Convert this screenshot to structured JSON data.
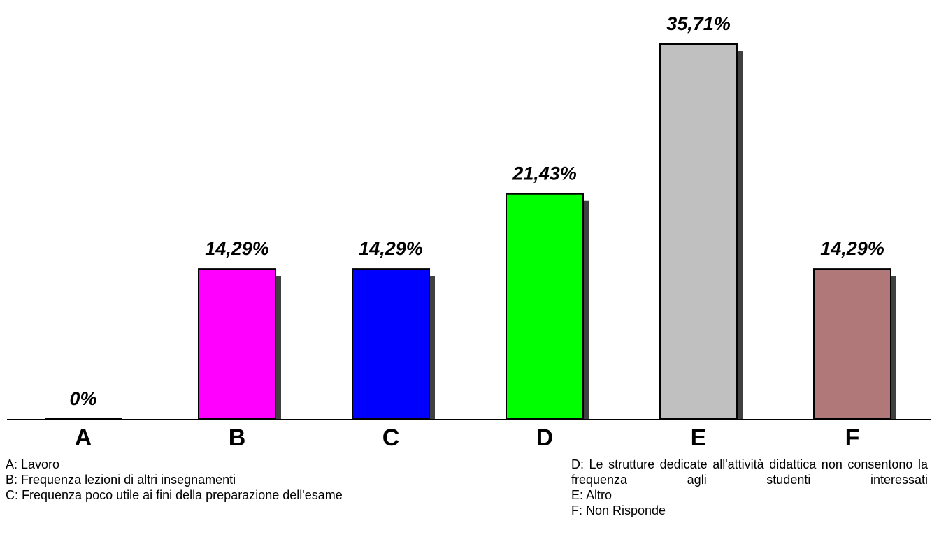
{
  "chart_data": {
    "type": "bar",
    "categories": [
      "A",
      "B",
      "C",
      "D",
      "E",
      "F"
    ],
    "values": [
      0,
      14.29,
      14.29,
      21.43,
      35.71,
      14.29
    ],
    "value_labels": [
      "0%",
      "14,29%",
      "14,29%",
      "21,43%",
      "35,71%",
      "14,29%"
    ],
    "colors": [
      "#000000",
      "#ff00ff",
      "#0000ff",
      "#00ff00",
      "#c0c0c0",
      "#b07878"
    ],
    "shadow_color": "#404040",
    "ylim": [
      0,
      35.71
    ],
    "grid": false,
    "title": "",
    "xlabel": "",
    "ylabel": ""
  },
  "legend": {
    "left": [
      "A: Lavoro",
      "B: Frequenza lezioni di altri insegnamenti",
      "C: Frequenza poco utile ai fini della preparazione dell'esame"
    ],
    "right": [
      "D: Le strutture dedicate all'attività didattica non consentono la frequenza agli studenti interessati",
      "E: Altro",
      "F: Non Risponde"
    ]
  }
}
